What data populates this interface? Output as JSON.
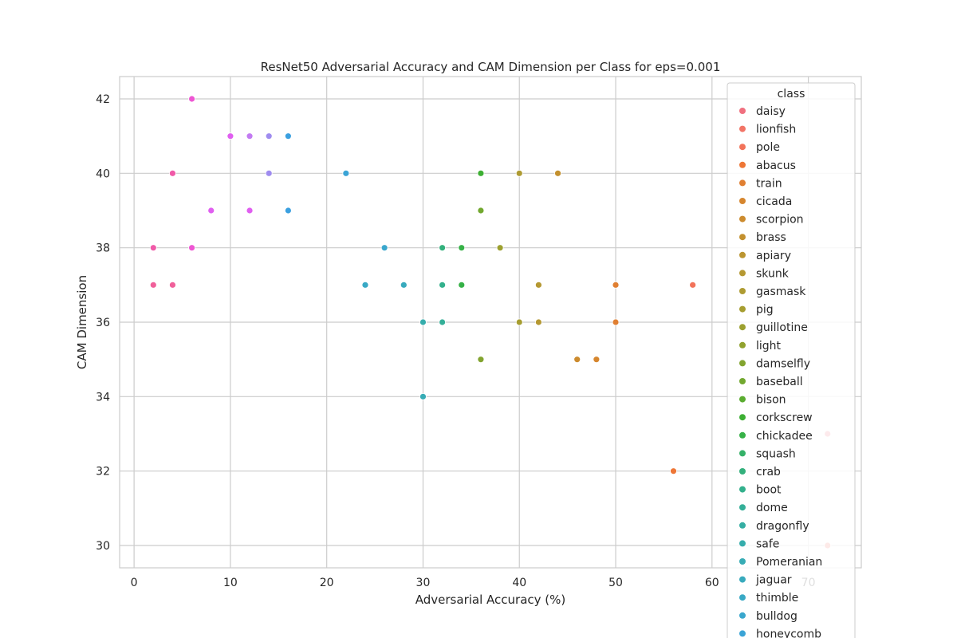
{
  "chart_data": {
    "type": "scatter",
    "title": "ResNet50 Adversarial Accuracy and CAM Dimension per Class for eps=0.001",
    "xlabel": "Adversarial Accuracy (%)",
    "ylabel": "CAM Dimension",
    "xlim": [
      -1.5,
      75.5
    ],
    "ylim": [
      29.4,
      42.6
    ],
    "xticks": [
      0,
      10,
      20,
      30,
      40,
      50,
      60,
      70
    ],
    "yticks": [
      30,
      32,
      34,
      36,
      38,
      40,
      42
    ],
    "grid": true,
    "legend": {
      "title": "class",
      "placement": "upper right"
    },
    "series": [
      {
        "name": "daisy",
        "color": "#f0707f",
        "points": [
          [
            72,
            33
          ]
        ]
      },
      {
        "name": "lionfish",
        "color": "#f27466",
        "points": [
          [
            72,
            30
          ]
        ]
      },
      {
        "name": "pole",
        "color": "#f2735a",
        "points": [
          [
            58,
            37
          ]
        ]
      },
      {
        "name": "abacus",
        "color": "#ee7636",
        "points": [
          [
            56,
            32
          ]
        ]
      },
      {
        "name": "train",
        "color": "#e07f32",
        "points": [
          [
            50,
            37
          ],
          [
            50,
            36
          ]
        ]
      },
      {
        "name": "cicada",
        "color": "#d6862e",
        "points": [
          [
            48,
            35
          ]
        ]
      },
      {
        "name": "scorpion",
        "color": "#cc8b2e",
        "points": [
          [
            46,
            35
          ]
        ]
      },
      {
        "name": "brass",
        "color": "#c3902e",
        "points": [
          [
            44,
            40
          ]
        ]
      },
      {
        "name": "apiary",
        "color": "#bb9530",
        "points": []
      },
      {
        "name": "skunk",
        "color": "#b59832",
        "points": [
          [
            42,
            37
          ],
          [
            42,
            36
          ]
        ]
      },
      {
        "name": "gasmask",
        "color": "#ae9b32",
        "points": [
          [
            40,
            40
          ]
        ]
      },
      {
        "name": "pig",
        "color": "#a69d30",
        "points": [
          [
            40,
            36
          ]
        ]
      },
      {
        "name": "guillotine",
        "color": "#9ca02f",
        "points": [
          [
            38,
            38
          ]
        ]
      },
      {
        "name": "light",
        "color": "#91a22f",
        "points": []
      },
      {
        "name": "damselfly",
        "color": "#82a42f",
        "points": [
          [
            36,
            35
          ]
        ]
      },
      {
        "name": "baseball",
        "color": "#72a82f",
        "points": [
          [
            36,
            39
          ]
        ]
      },
      {
        "name": "bison",
        "color": "#5aac30",
        "points": []
      },
      {
        "name": "corkscrew",
        "color": "#3daf33",
        "points": [
          [
            36,
            40
          ]
        ]
      },
      {
        "name": "chickadee",
        "color": "#36b147",
        "points": [
          [
            34,
            38
          ],
          [
            34,
            37
          ]
        ]
      },
      {
        "name": "squash",
        "color": "#35b168",
        "points": []
      },
      {
        "name": "crab",
        "color": "#33b07c",
        "points": [
          [
            32,
            38
          ]
        ]
      },
      {
        "name": "boot",
        "color": "#33b08c",
        "points": [
          [
            32,
            37
          ]
        ]
      },
      {
        "name": "dome",
        "color": "#34af98",
        "points": [
          [
            32,
            36
          ]
        ]
      },
      {
        "name": "dragonfly",
        "color": "#35aea3",
        "points": []
      },
      {
        "name": "safe",
        "color": "#36adac",
        "points": [
          [
            30,
            36
          ]
        ]
      },
      {
        "name": "Pomeranian",
        "color": "#37acb5",
        "points": [
          [
            30,
            34
          ]
        ]
      },
      {
        "name": "jaguar",
        "color": "#38aabd",
        "points": [
          [
            28,
            37
          ]
        ]
      },
      {
        "name": "thimble",
        "color": "#39a9c5",
        "points": [
          [
            24,
            37
          ]
        ]
      },
      {
        "name": "bulldog",
        "color": "#3aa7cd",
        "points": [
          [
            26,
            38
          ]
        ]
      },
      {
        "name": "honeycomb",
        "color": "#3ba4d6",
        "points": [
          [
            22,
            40
          ]
        ]
      },
      {
        "name": "",
        "color": "#3ba0e0",
        "points": [
          [
            16,
            41
          ],
          [
            16,
            39
          ]
        ]
      },
      {
        "name": "",
        "color": "#9f8cef",
        "points": [
          [
            14,
            41
          ],
          [
            14,
            40
          ]
        ]
      },
      {
        "name": "",
        "color": "#c37bf2",
        "points": [
          [
            12,
            41
          ]
        ]
      },
      {
        "name": "",
        "color": "#e05ff0",
        "points": [
          [
            10,
            41
          ],
          [
            12,
            39
          ],
          [
            8,
            39
          ]
        ]
      },
      {
        "name": "",
        "color": "#ee56d3",
        "points": [
          [
            6,
            42
          ],
          [
            6,
            38
          ]
        ]
      },
      {
        "name": "",
        "color": "#f05aa8",
        "points": [
          [
            4,
            40
          ],
          [
            2,
            38
          ]
        ]
      },
      {
        "name": "",
        "color": "#f0609a",
        "points": [
          [
            2,
            37
          ],
          [
            4,
            37
          ]
        ]
      }
    ]
  }
}
